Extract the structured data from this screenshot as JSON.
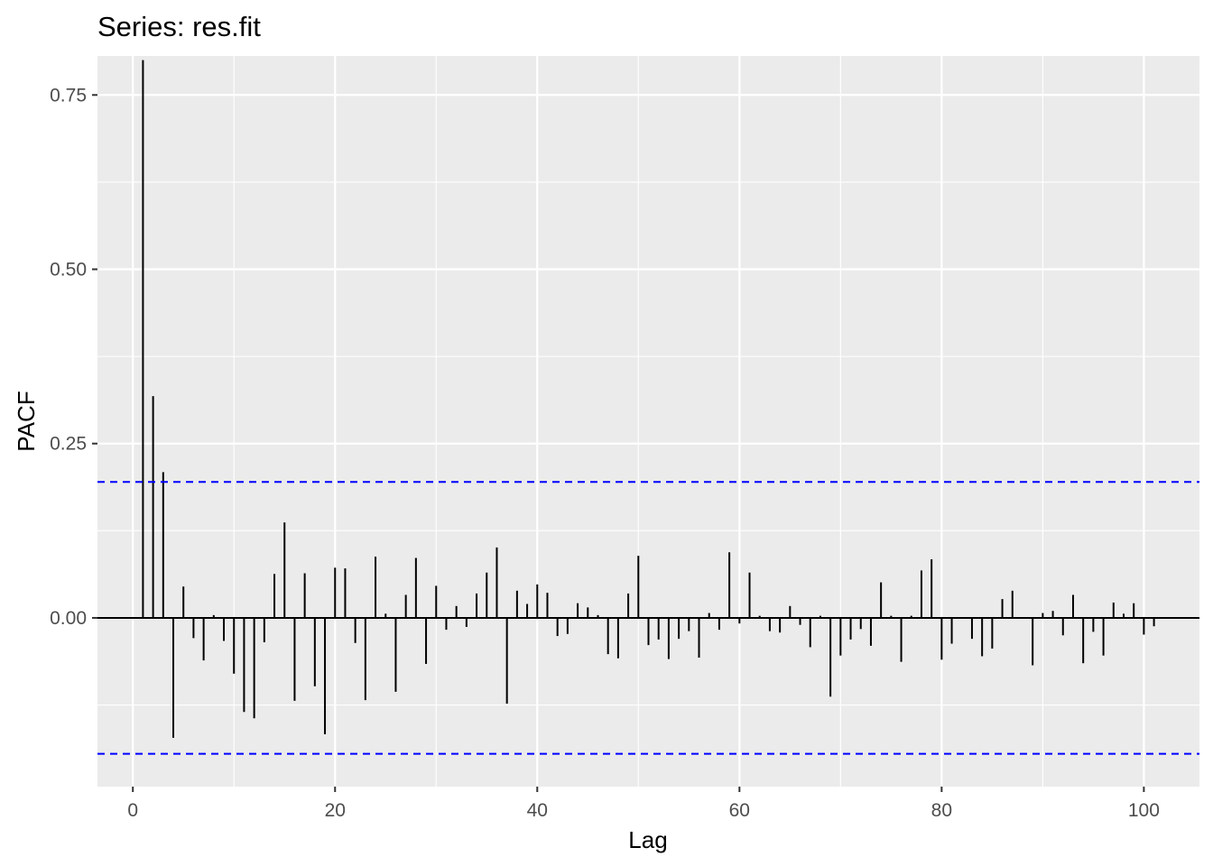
{
  "chart_data": {
    "type": "bar",
    "title": "Series: res.fit",
    "xlabel": "Lag",
    "ylabel": "PACF",
    "xlim": [
      -3.5,
      105.5
    ],
    "ylim": [
      -0.242,
      0.806
    ],
    "x_ticks": [
      0,
      20,
      40,
      60,
      80,
      100
    ],
    "y_ticks": [
      0.0,
      0.25,
      0.5,
      0.75
    ],
    "y_tick_labels": [
      "0.00",
      "0.25",
      "0.50",
      "0.75"
    ],
    "x_minor_ticks": [
      10,
      30,
      50,
      70,
      90
    ],
    "y_minor_ticks": [
      -0.125,
      0.125,
      0.375,
      0.625
    ],
    "grid": true,
    "legend": "none",
    "confidence_limits": [
      0.195,
      -0.195
    ],
    "lags": [
      1,
      2,
      3,
      4,
      5,
      6,
      7,
      8,
      9,
      10,
      11,
      12,
      13,
      14,
      15,
      16,
      17,
      18,
      19,
      20,
      21,
      22,
      23,
      24,
      25,
      26,
      27,
      28,
      29,
      30,
      31,
      32,
      33,
      34,
      35,
      36,
      37,
      38,
      39,
      40,
      41,
      42,
      43,
      44,
      45,
      46,
      47,
      48,
      49,
      50,
      51,
      52,
      53,
      54,
      55,
      56,
      57,
      58,
      59,
      60,
      61,
      62,
      63,
      64,
      65,
      66,
      67,
      68,
      69,
      70,
      71,
      72,
      73,
      74,
      75,
      76,
      77,
      78,
      79,
      80,
      81,
      82,
      83,
      84,
      85,
      86,
      87,
      88,
      89,
      90,
      91,
      92,
      93,
      94,
      95,
      96,
      97,
      98,
      99,
      100,
      101
    ],
    "values": [
      0.8,
      0.318,
      0.209,
      -0.172,
      0.045,
      -0.029,
      -0.061,
      0.004,
      -0.033,
      -0.08,
      -0.135,
      -0.144,
      -0.035,
      0.063,
      0.137,
      -0.119,
      0.064,
      -0.098,
      -0.167,
      0.072,
      0.071,
      -0.036,
      -0.118,
      0.088,
      0.006,
      -0.106,
      0.033,
      0.086,
      -0.066,
      0.046,
      -0.017,
      0.017,
      -0.013,
      0.035,
      0.065,
      0.101,
      -0.123,
      0.039,
      0.02,
      0.048,
      0.036,
      -0.026,
      -0.023,
      0.021,
      0.015,
      0.004,
      -0.052,
      -0.058,
      0.035,
      0.089,
      -0.039,
      -0.031,
      -0.059,
      -0.03,
      -0.019,
      -0.057,
      0.007,
      -0.017,
      0.094,
      -0.008,
      0.065,
      0.003,
      -0.019,
      -0.021,
      0.017,
      -0.01,
      -0.042,
      0.003,
      -0.113,
      -0.054,
      -0.031,
      -0.016,
      -0.04,
      0.051,
      0.003,
      -0.063,
      0.003,
      0.068,
      0.084,
      -0.06,
      -0.037,
      0.0,
      -0.03,
      -0.055,
      -0.044,
      0.027,
      0.039,
      0.0,
      -0.068,
      0.007,
      0.01,
      -0.025,
      0.033,
      -0.065,
      -0.02,
      -0.054,
      0.022,
      0.006,
      0.021,
      -0.024,
      -0.012
    ],
    "colors": {
      "panel": "#ebebeb",
      "grid": "#ffffff",
      "bars": "#000000",
      "baseline": "#000000",
      "confidence": "#0000ff",
      "tick_mark": "#333333"
    }
  }
}
